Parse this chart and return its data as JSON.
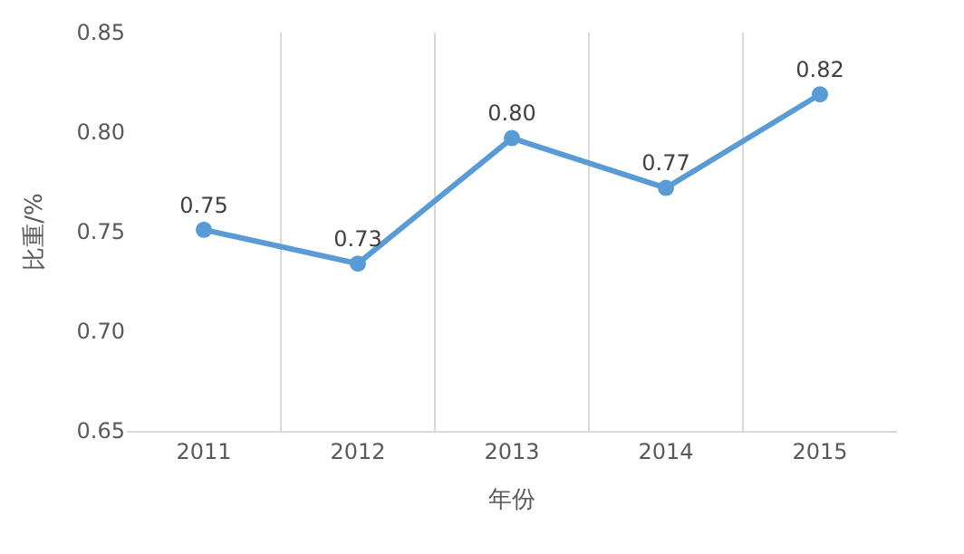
{
  "chart_data": {
    "type": "line",
    "xlabel": "年份",
    "ylabel": "比重/%",
    "categories": [
      "2011",
      "2012",
      "2013",
      "2014",
      "2015"
    ],
    "series": [
      {
        "color": "#5b9bd5",
        "values": [
          0.751,
          0.734,
          0.797,
          0.772,
          0.819
        ],
        "value_labels": [
          "0.75",
          "0.73",
          "0.80",
          "0.77",
          "0.82"
        ]
      }
    ],
    "ylim": [
      0.65,
      0.85
    ],
    "yticks": [
      "0.65",
      "0.70",
      "0.75",
      "0.80",
      "0.85"
    ],
    "grid": "x",
    "marker": "circle",
    "line_style": "solid",
    "legend": false
  }
}
